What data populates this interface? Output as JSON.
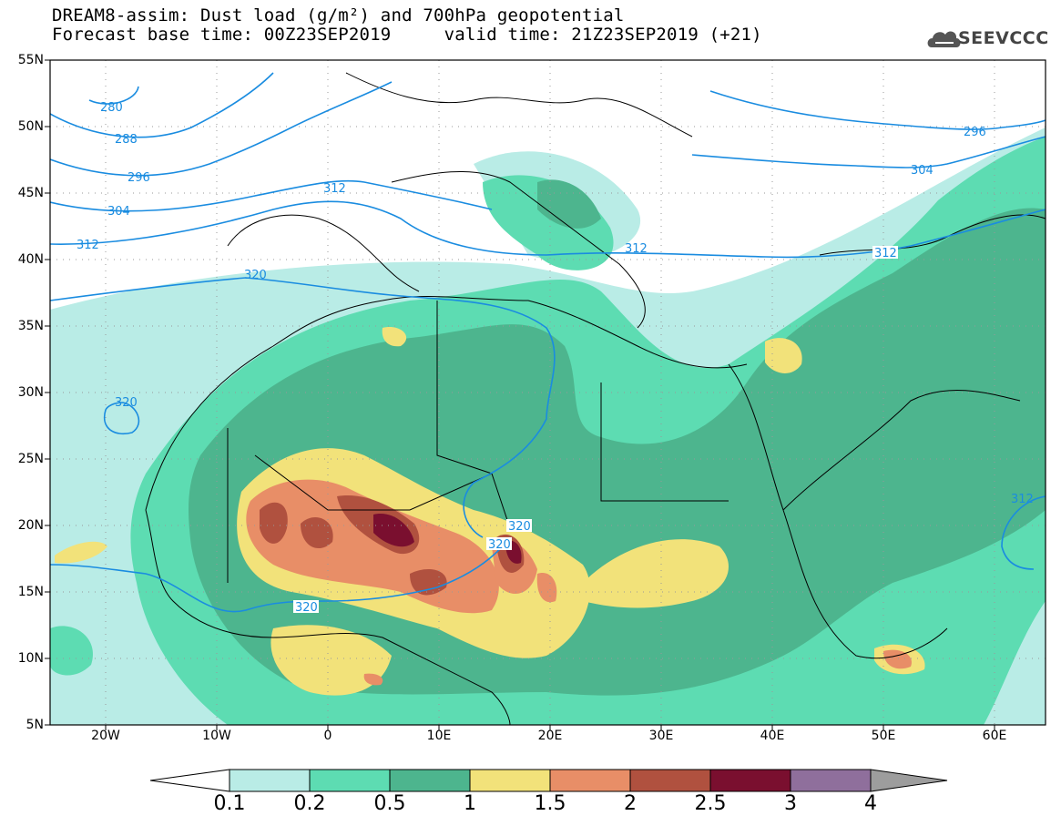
{
  "title": {
    "line1": "DREAM8-assim: Dust load (g/m²) and 700hPa geopotential",
    "line2": "Forecast base time: 00Z23SEP2019     valid time: 21Z23SEP2019 (+21)"
  },
  "logo": {
    "text": "SEEVCCC",
    "icon": "cloud-icon"
  },
  "axes": {
    "lat_labels": [
      "55N",
      "50N",
      "45N",
      "40N",
      "35N",
      "30N",
      "25N",
      "20N",
      "15N",
      "10N",
      "5N"
    ],
    "lon_labels": [
      "20W",
      "10W",
      "0",
      "10E",
      "20E",
      "30E",
      "40E",
      "50E",
      "60E"
    ]
  },
  "contours": {
    "color": "#1a8ce0",
    "labels": [
      "280",
      "288",
      "296",
      "304",
      "312",
      "320",
      "312",
      "312",
      "320",
      "320",
      "320",
      "312",
      "296",
      "304",
      "312",
      "312"
    ]
  },
  "colorbar": {
    "levels": [
      "0.1",
      "0.2",
      "0.5",
      "1",
      "1.5",
      "2",
      "2.5",
      "3",
      "4"
    ],
    "colors": [
      "#ffffff",
      "#b9ece6",
      "#5ddcb2",
      "#4db58e",
      "#f2e27a",
      "#e88e67",
      "#b0513f",
      "#7a0f2f",
      "#8f6f9c",
      "#9d9d9d"
    ]
  }
}
